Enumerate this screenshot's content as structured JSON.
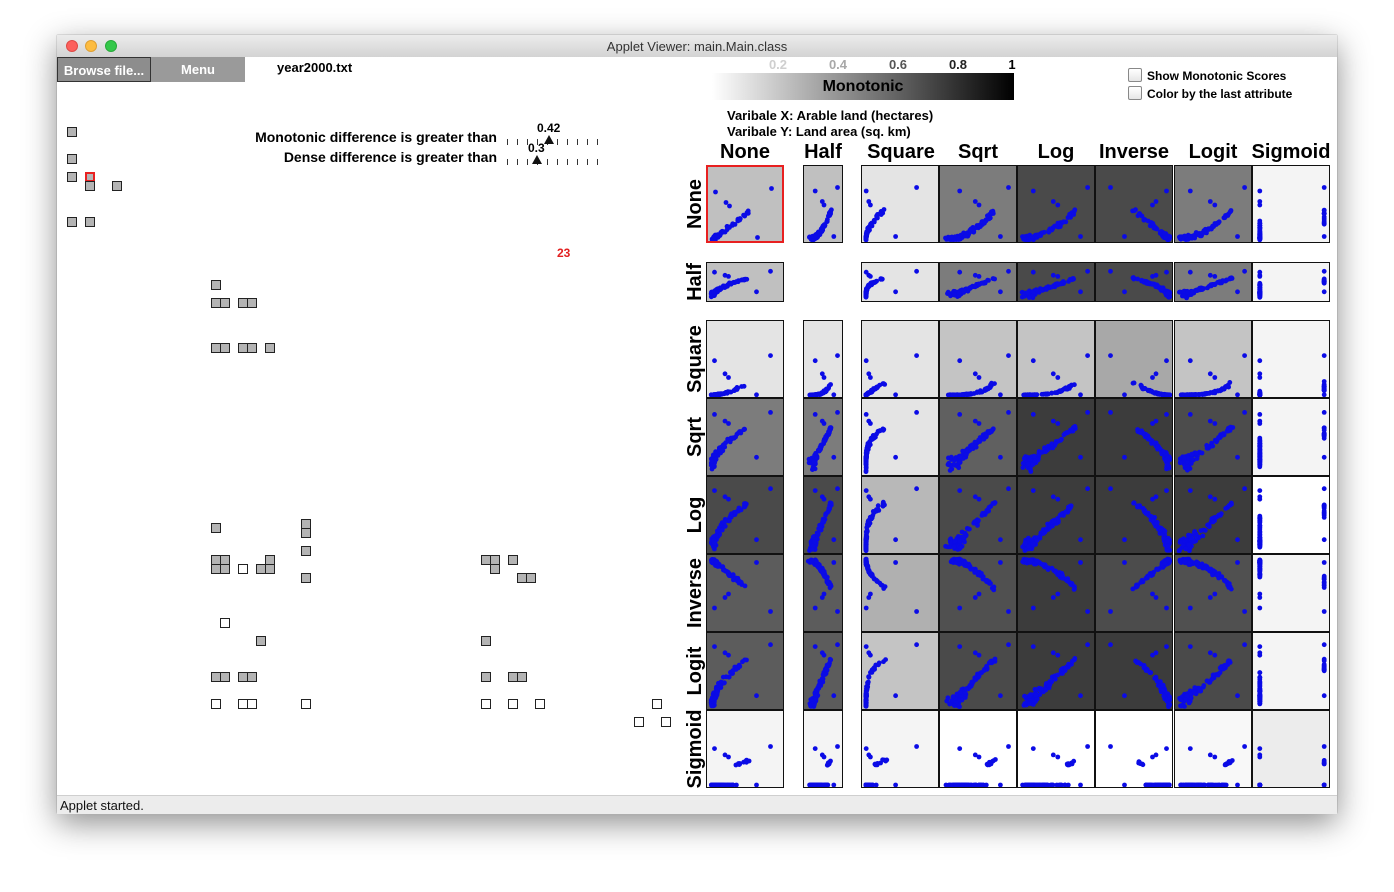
{
  "window": {
    "title": "Applet Viewer: main.Main.class"
  },
  "toolbar": {
    "browse_label": "Browse file...",
    "menu_label": "Menu",
    "filename": "year2000.txt"
  },
  "filters": {
    "monotonic_label": "Monotonic difference is greater than",
    "monotonic_value": "0.42",
    "monotonic_fraction": 0.42,
    "dense_label": "Dense difference is greater than",
    "dense_value": "0.3",
    "dense_fraction": 0.3
  },
  "count_label": "23",
  "legend": {
    "name": "Monotonic",
    "ticks": [
      "0.2",
      "0.4",
      "0.6",
      "0.8",
      "1"
    ]
  },
  "options": {
    "show_scores_label": "Show Monotonic Scores",
    "color_last_label": "Color by the last attribute"
  },
  "variables": {
    "x_label": "Varibale X: Arable land (hectares)",
    "y_label": "Varibale Y: Land area (sq. km)"
  },
  "matrix": {
    "transforms": [
      "None",
      "Half",
      "Square",
      "Sqrt",
      "Log",
      "Inverse",
      "Logit",
      "Sigmoid"
    ],
    "point_color": "#0b0be6",
    "selected_cell": [
      0,
      0
    ]
  },
  "status": "Applet started."
}
